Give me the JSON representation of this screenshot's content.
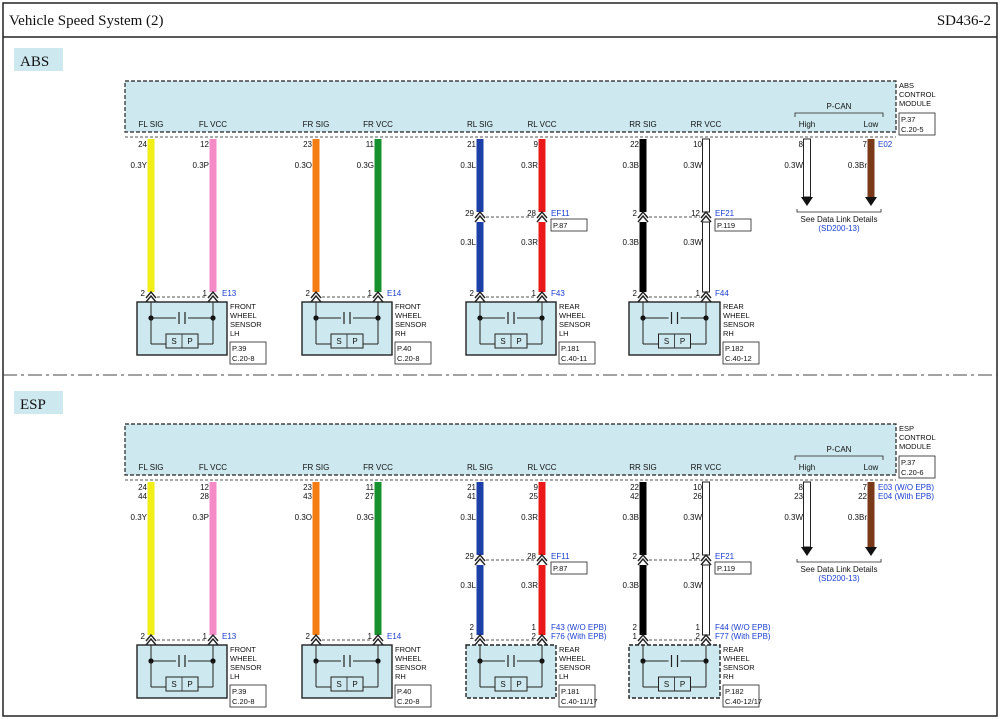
{
  "header": {
    "title": "Vehicle Speed System (2)",
    "code": "SD436-2"
  },
  "colors": {
    "module_fill": "#cde9ef",
    "label_fill": "#cde9ef",
    "connector_ref": "#1a3fd1"
  },
  "sections": [
    {
      "label": "ABS",
      "module_name": [
        "ABS",
        "CONTROL",
        "MODULE"
      ],
      "module_ref": [
        "P.37",
        "C.20-5"
      ],
      "pcan": {
        "title": "P-CAN",
        "high": "High",
        "low": "Low",
        "high_pins": [
          "8"
        ],
        "low_pins": [
          "7"
        ],
        "high_wire": "0.3W",
        "low_wire": "0.3Br",
        "connector": [
          "E02"
        ],
        "note": "See Data Link Details",
        "note_ref": "(SD200-13)"
      },
      "groups": [
        {
          "sig": {
            "label": "FL SIG",
            "pins": [
              "24"
            ],
            "wire": "0.3Y"
          },
          "vcc": {
            "label": "FL VCC",
            "pins": [
              "12"
            ],
            "wire": "0.3P"
          },
          "sensor_pins": {
            "sig": [
              "2"
            ],
            "vcc": [
              "1"
            ]
          },
          "sensor_conn": [
            "E13"
          ],
          "sensor_name": [
            "FRONT",
            "WHEEL",
            "SENSOR",
            "LH"
          ],
          "sensor_ref": [
            "P.39",
            "C.20-8"
          ],
          "sp": {
            "s": "S",
            "p": "P"
          }
        },
        {
          "sig": {
            "label": "FR SIG",
            "pins": [
              "23"
            ],
            "wire": "0.3O"
          },
          "vcc": {
            "label": "FR VCC",
            "pins": [
              "11"
            ],
            "wire": "0.3G"
          },
          "sensor_pins": {
            "sig": [
              "2"
            ],
            "vcc": [
              "1"
            ]
          },
          "sensor_conn": [
            "E14"
          ],
          "sensor_name": [
            "FRONT",
            "WHEEL",
            "SENSOR",
            "RH"
          ],
          "sensor_ref": [
            "P.40",
            "C.20-8"
          ],
          "sp": {
            "s": "S",
            "p": "P"
          }
        },
        {
          "sig": {
            "label": "RL SIG",
            "pins": [
              "21"
            ],
            "wire": "0.3L",
            "wire2": "0.3L"
          },
          "vcc": {
            "label": "RL VCC",
            "pins": [
              "9"
            ],
            "wire": "0.3R",
            "wire2": "0.3R"
          },
          "mid": {
            "sig_pin": "29",
            "vcc_pin": "28",
            "conn": "EF11",
            "ref": "P.87"
          },
          "sensor_pins": {
            "sig": [
              "2"
            ],
            "vcc": [
              "1"
            ]
          },
          "sensor_conn": [
            "F43"
          ],
          "sensor_name": [
            "REAR",
            "WHEEL",
            "SENSOR",
            "LH"
          ],
          "sensor_ref": [
            "P.181",
            "C.40-11"
          ],
          "sp": {
            "s": "S",
            "p": "P"
          }
        },
        {
          "sig": {
            "label": "RR SIG",
            "pins": [
              "22"
            ],
            "wire": "0.3B",
            "wire2": "0.3B"
          },
          "vcc": {
            "label": "RR VCC",
            "pins": [
              "10"
            ],
            "wire": "0.3W",
            "wire2": "0.3W"
          },
          "mid": {
            "sig_pin": "2",
            "vcc_pin": "12",
            "conn": "EF21",
            "ref": "P.119"
          },
          "sensor_pins": {
            "sig": [
              "2"
            ],
            "vcc": [
              "1"
            ]
          },
          "sensor_conn": [
            "F44"
          ],
          "sensor_name": [
            "REAR",
            "WHEEL",
            "SENSOR",
            "RH"
          ],
          "sensor_ref": [
            "P.182",
            "C.40-12"
          ],
          "sp": {
            "s": "S",
            "p": "P"
          }
        }
      ]
    },
    {
      "label": "ESP",
      "module_name": [
        "ESP",
        "CONTROL",
        "MODULE"
      ],
      "module_ref": [
        "P.37",
        "C.20-6"
      ],
      "pcan": {
        "title": "P-CAN",
        "high": "High",
        "low": "Low",
        "high_pins": [
          "8",
          "23"
        ],
        "low_pins": [
          "7",
          "22"
        ],
        "high_wire": "0.3W",
        "low_wire": "0.3Br",
        "connector": [
          "E03 (W/O EPB)",
          "E04 (With EPB)"
        ],
        "note": "See Data Link Details",
        "note_ref": "(SD200-13)"
      },
      "groups": [
        {
          "sig": {
            "label": "FL SIG",
            "pins": [
              "24",
              "44"
            ],
            "wire": "0.3Y"
          },
          "vcc": {
            "label": "FL VCC",
            "pins": [
              "12",
              "28"
            ],
            "wire": "0.3P"
          },
          "sensor_pins": {
            "sig": [
              "2"
            ],
            "vcc": [
              "1"
            ]
          },
          "sensor_conn": [
            "E13"
          ],
          "sensor_name": [
            "FRONT",
            "WHEEL",
            "SENSOR",
            "LH"
          ],
          "sensor_ref": [
            "P.39",
            "C.20-8"
          ],
          "sp": {
            "s": "S",
            "p": "P"
          }
        },
        {
          "sig": {
            "label": "FR SIG",
            "pins": [
              "23",
              "43"
            ],
            "wire": "0.3O"
          },
          "vcc": {
            "label": "FR VCC",
            "pins": [
              "11",
              "27"
            ],
            "wire": "0.3G"
          },
          "sensor_pins": {
            "sig": [
              "2"
            ],
            "vcc": [
              "1"
            ]
          },
          "sensor_conn": [
            "E14"
          ],
          "sensor_name": [
            "FRONT",
            "WHEEL",
            "SENSOR",
            "RH"
          ],
          "sensor_ref": [
            "P.40",
            "C.20-8"
          ],
          "sp": {
            "s": "S",
            "p": "P"
          }
        },
        {
          "sig": {
            "label": "RL SIG",
            "pins": [
              "21",
              "41"
            ],
            "wire": "0.3L",
            "wire2": "0.3L"
          },
          "vcc": {
            "label": "RL VCC",
            "pins": [
              "9",
              "25"
            ],
            "wire": "0.3R",
            "wire2": "0.3R"
          },
          "mid": {
            "sig_pin": "29",
            "vcc_pin": "28",
            "conn": "EF11",
            "ref": "P.87"
          },
          "sensor_pins": {
            "sig": [
              "2",
              "1"
            ],
            "vcc": [
              "1",
              "2"
            ]
          },
          "sensor_conn": [
            "F43 (W/O EPB)",
            "F76 (With EPB)"
          ],
          "sensor_name": [
            "REAR",
            "WHEEL",
            "SENSOR",
            "LH"
          ],
          "sensor_ref": [
            "P.181",
            "C.40-11/17"
          ],
          "sp": {
            "s": "S",
            "p": "P"
          }
        },
        {
          "sig": {
            "label": "RR SIG",
            "pins": [
              "22",
              "42"
            ],
            "wire": "0.3B",
            "wire2": "0.3B"
          },
          "vcc": {
            "label": "RR VCC",
            "pins": [
              "10",
              "26"
            ],
            "wire": "0.3W",
            "wire2": "0.3W"
          },
          "mid": {
            "sig_pin": "2",
            "vcc_pin": "12",
            "conn": "EF21",
            "ref": "P.119"
          },
          "sensor_pins": {
            "sig": [
              "2",
              "1"
            ],
            "vcc": [
              "1",
              "2"
            ]
          },
          "sensor_conn": [
            "F44 (W/O EPB)",
            "F77 (With EPB)"
          ],
          "sensor_name": [
            "REAR",
            "WHEEL",
            "SENSOR",
            "RH"
          ],
          "sensor_ref": [
            "P.182",
            "C.40-12/17"
          ],
          "sp": {
            "s": "S",
            "p": "P"
          }
        }
      ]
    }
  ]
}
